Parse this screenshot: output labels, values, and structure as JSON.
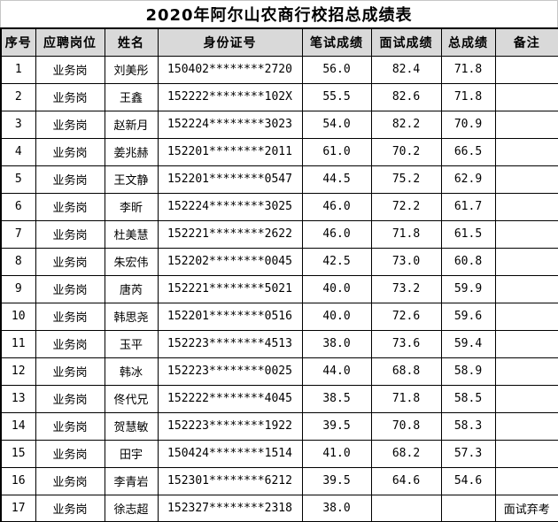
{
  "title": "2020年阿尔山农商行校招总成绩表",
  "colors": {
    "header_bg": "#d9d9d9",
    "border": "#000000",
    "gridline": "#c6c6c6",
    "page_bg": "#ffffff",
    "text": "#000000"
  },
  "table": {
    "headers": [
      "序号",
      "应聘岗位",
      "姓名",
      "身份证号",
      "笔试成绩",
      "面试成绩",
      "总成绩",
      "备注"
    ],
    "rows": [
      [
        "1",
        "业务岗",
        "刘美彤",
        "150402********2720",
        "56.0",
        "82.4",
        "71.8",
        ""
      ],
      [
        "2",
        "业务岗",
        "王鑫",
        "152222********102X",
        "55.5",
        "82.6",
        "71.8",
        ""
      ],
      [
        "3",
        "业务岗",
        "赵新月",
        "152224********3023",
        "54.0",
        "82.2",
        "70.9",
        ""
      ],
      [
        "4",
        "业务岗",
        "姜兆赫",
        "152201********2011",
        "61.0",
        "70.2",
        "66.5",
        ""
      ],
      [
        "5",
        "业务岗",
        "王文静",
        "152201********0547",
        "44.5",
        "75.2",
        "62.9",
        ""
      ],
      [
        "6",
        "业务岗",
        "李昕",
        "152224********3025",
        "46.0",
        "72.2",
        "61.7",
        ""
      ],
      [
        "7",
        "业务岗",
        "杜美慧",
        "152221********2622",
        "46.0",
        "71.8",
        "61.5",
        ""
      ],
      [
        "8",
        "业务岗",
        "朱宏伟",
        "152202********0045",
        "42.5",
        "73.0",
        "60.8",
        ""
      ],
      [
        "9",
        "业务岗",
        "唐芮",
        "152221********5021",
        "40.0",
        "73.2",
        "59.9",
        ""
      ],
      [
        "10",
        "业务岗",
        "韩思尧",
        "152201********0516",
        "40.0",
        "72.6",
        "59.6",
        ""
      ],
      [
        "11",
        "业务岗",
        "玉平",
        "152223********4513",
        "38.0",
        "73.6",
        "59.4",
        ""
      ],
      [
        "12",
        "业务岗",
        "韩冰",
        "152223********0025",
        "44.0",
        "68.8",
        "58.9",
        ""
      ],
      [
        "13",
        "业务岗",
        "佟代兄",
        "152222********4045",
        "38.5",
        "71.8",
        "58.5",
        ""
      ],
      [
        "14",
        "业务岗",
        "贺慧敏",
        "152223********1922",
        "39.5",
        "70.8",
        "58.3",
        ""
      ],
      [
        "15",
        "业务岗",
        "田宇",
        "150424********1514",
        "41.0",
        "68.2",
        "57.3",
        ""
      ],
      [
        "16",
        "业务岗",
        "李青岩",
        "152301********6212",
        "39.5",
        "64.6",
        "54.6",
        ""
      ],
      [
        "17",
        "业务岗",
        "徐志超",
        "152327********2318",
        "38.0",
        "",
        "",
        "面试弃考"
      ]
    ]
  }
}
